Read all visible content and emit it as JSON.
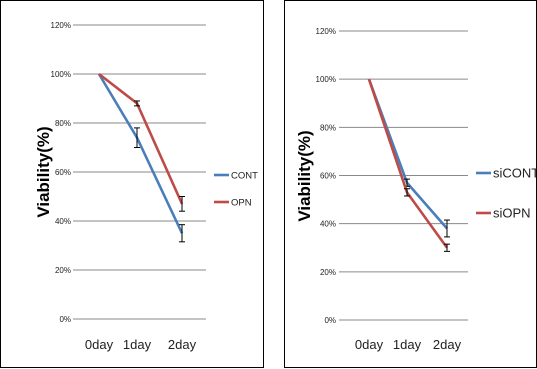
{
  "chart_data": [
    {
      "type": "line",
      "categories": [
        "0day",
        "1day",
        "2day"
      ],
      "ylabel": "Viability(%)",
      "ylim": [
        0,
        120
      ],
      "ytick_labels": [
        "0%",
        "20%",
        "40%",
        "60%",
        "80%",
        "100%",
        "120%"
      ],
      "grid": true,
      "legend": "right",
      "series": [
        {
          "name": "CONT",
          "color": "#4a7ebb",
          "values": [
            100,
            74,
            35
          ],
          "errors": [
            0,
            4,
            3.5
          ]
        },
        {
          "name": "OPN",
          "color": "#be4b48",
          "values": [
            100,
            88,
            47
          ],
          "errors": [
            0,
            1,
            3
          ]
        }
      ]
    },
    {
      "type": "line",
      "categories": [
        "0day",
        "1day",
        "2day"
      ],
      "ylabel": "Viability(%)",
      "ylim": [
        0,
        120
      ],
      "ytick_labels": [
        "0%",
        "20%",
        "40%",
        "60%",
        "80%",
        "100%",
        "120%"
      ],
      "grid": true,
      "legend": "right",
      "series": [
        {
          "name": "siCONT",
          "color": "#4a7ebb",
          "values": [
            100,
            57,
            38
          ],
          "errors": [
            0,
            1.5,
            3.5
          ]
        },
        {
          "name": "siOPN",
          "color": "#be4b48",
          "values": [
            100,
            53,
            30
          ],
          "errors": [
            0,
            1.5,
            1.5
          ]
        }
      ]
    }
  ]
}
